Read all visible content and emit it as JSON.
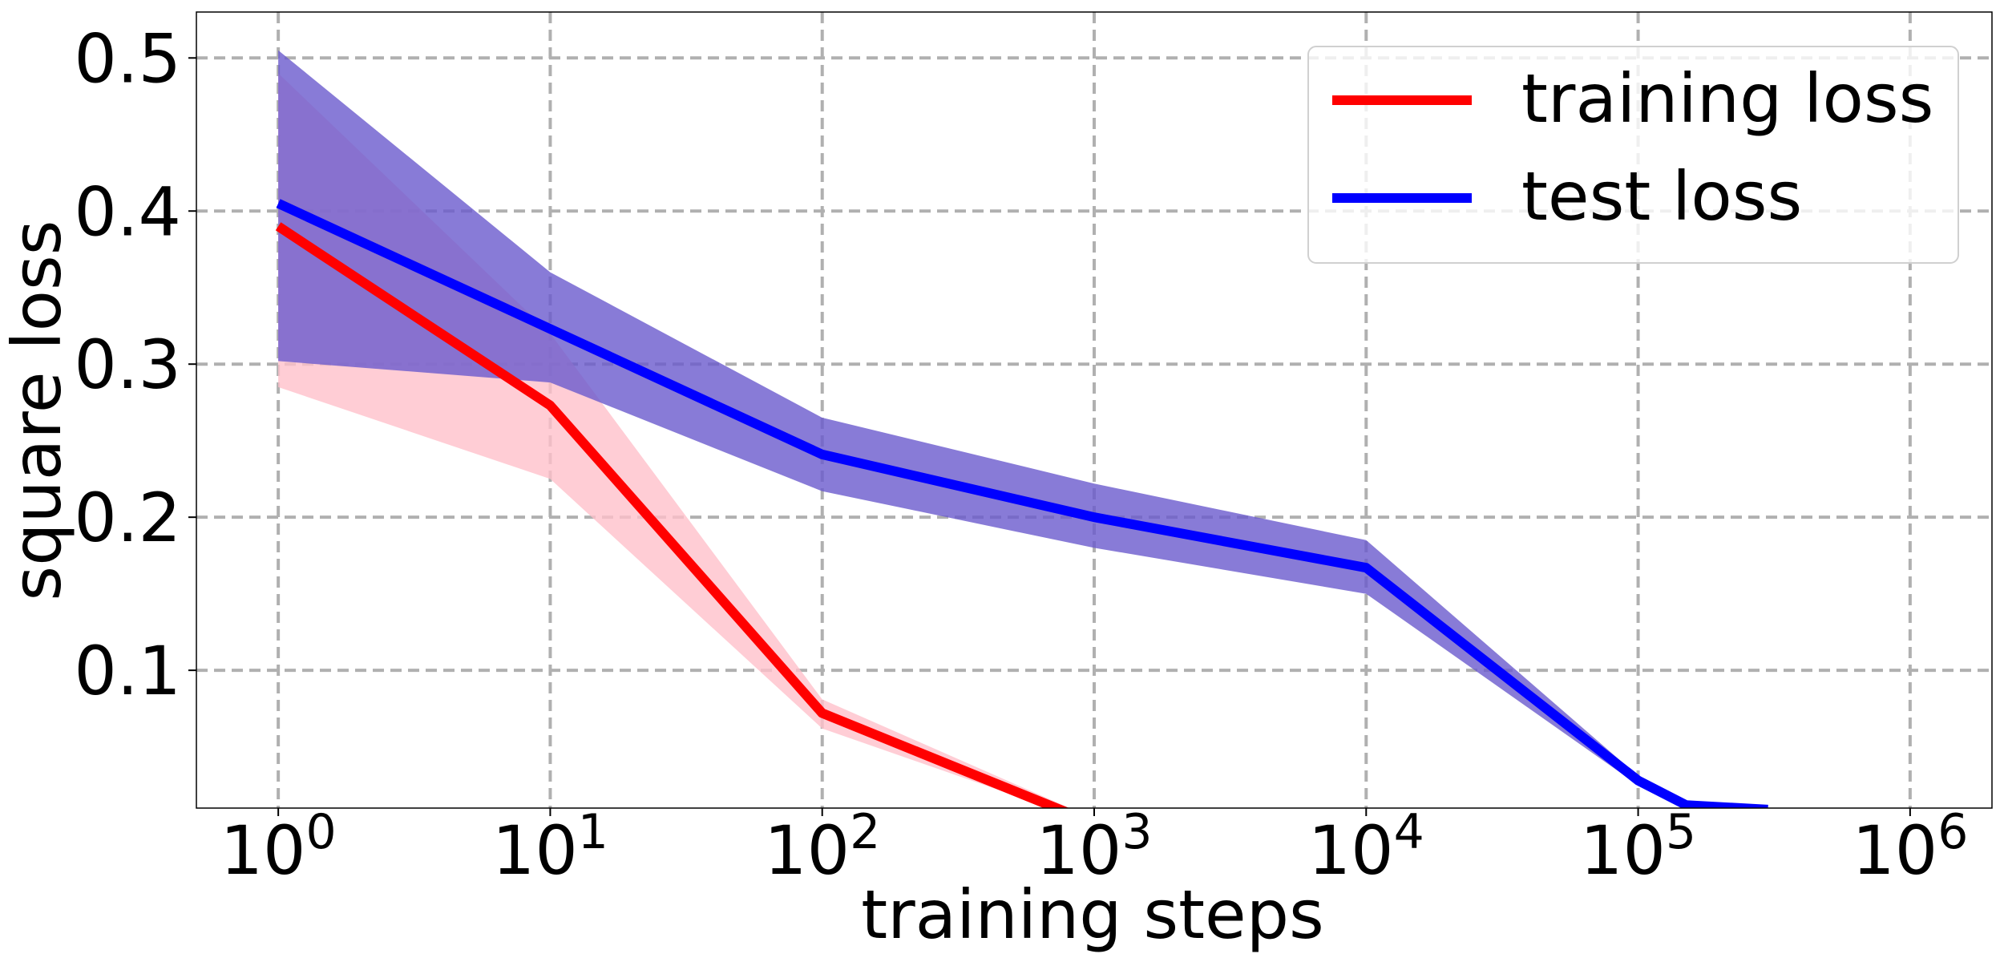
{
  "chart_data": {
    "type": "line",
    "title": "",
    "xlabel": "training steps",
    "ylabel": "square loss",
    "x_scale": "log",
    "xlim": [
      0.5,
      2000000
    ],
    "ylim": [
      0.01,
      0.53
    ],
    "grid": true,
    "legend_position": "top-right",
    "x_ticks": [
      {
        "value": 1,
        "base": "10",
        "exp": "0"
      },
      {
        "value": 10,
        "base": "10",
        "exp": "1"
      },
      {
        "value": 100,
        "base": "10",
        "exp": "2"
      },
      {
        "value": 1000,
        "base": "10",
        "exp": "3"
      },
      {
        "value": 10000,
        "base": "10",
        "exp": "4"
      },
      {
        "value": 100000,
        "base": "10",
        "exp": "5"
      },
      {
        "value": 1000000,
        "base": "10",
        "exp": "6"
      }
    ],
    "y_ticks": [
      {
        "value": 0.1,
        "label": "0.1"
      },
      {
        "value": 0.2,
        "label": "0.2"
      },
      {
        "value": 0.3,
        "label": "0.3"
      },
      {
        "value": 0.4,
        "label": "0.4"
      },
      {
        "value": 0.5,
        "label": "0.5"
      }
    ],
    "series": [
      {
        "name": "training loss",
        "color": "#ff0000",
        "band_color": "#ffc0cb",
        "x": [
          1,
          10,
          100,
          1000
        ],
        "y": [
          0.39,
          0.273,
          0.072,
          0.0
        ],
        "lower": [
          0.285,
          0.225,
          0.062,
          0.0
        ],
        "upper": [
          0.49,
          0.32,
          0.081,
          0.003
        ]
      },
      {
        "name": "test loss",
        "color": "#0000ff",
        "band_color": "#6a5acd",
        "x": [
          1,
          10,
          100,
          1000,
          10000,
          100000,
          150000,
          300000
        ],
        "y": [
          0.405,
          0.323,
          0.241,
          0.2,
          0.167,
          0.028,
          0.012,
          0.009
        ],
        "lower": [
          0.302,
          0.288,
          0.217,
          0.18,
          0.15,
          0.025,
          0.011,
          0.009
        ],
        "upper": [
          0.505,
          0.36,
          0.265,
          0.222,
          0.185,
          0.031,
          0.013,
          0.009
        ]
      }
    ]
  }
}
